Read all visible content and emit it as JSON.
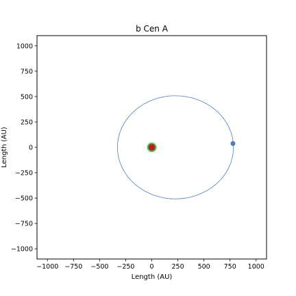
{
  "chart_data": {
    "type": "scatter",
    "title": "b Cen A",
    "xlabel": "Length (AU)",
    "ylabel": "Length (AU)",
    "xlim": [
      -1100,
      1100
    ],
    "ylim": [
      -1100,
      1100
    ],
    "xticks": [
      -1000,
      -750,
      -500,
      -250,
      0,
      250,
      500,
      750,
      1000
    ],
    "yticks": [
      -1000,
      -750,
      -500,
      -250,
      0,
      250,
      500,
      750,
      1000
    ],
    "xtick_labels": [
      "−1000",
      "−750",
      "−500",
      "−250",
      "0",
      "250",
      "500",
      "750",
      "1000"
    ],
    "ytick_labels": [
      "−1000",
      "−750",
      "−500",
      "−250",
      "0",
      "250",
      "500",
      "750",
      "1000"
    ],
    "grid": false,
    "orbit": {
      "center": [
        227,
        0
      ],
      "semi_major": 556,
      "semi_minor": 508,
      "color": "#4a7ec0"
    },
    "points": [
      {
        "x": 0,
        "y": 0,
        "color": "#57c457",
        "marker_radius": 7
      },
      {
        "x": 0,
        "y": 0,
        "color": "#b22222",
        "marker_radius": 5
      },
      {
        "x": 778,
        "y": 37,
        "color": "#4a7ec0",
        "marker_radius": 3.5
      }
    ]
  }
}
